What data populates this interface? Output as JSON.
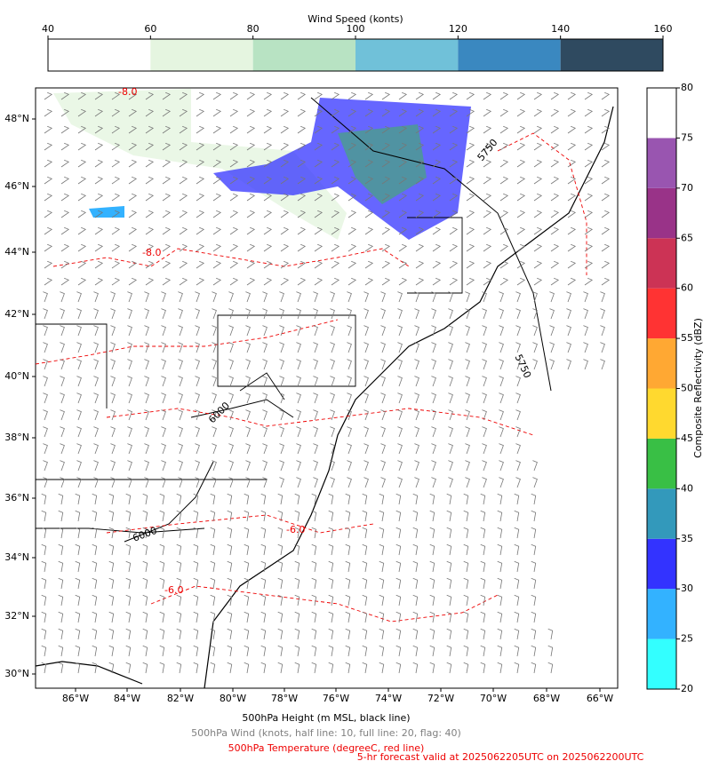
{
  "wind_colorbar": {
    "title": "Wind Speed (konts)",
    "ticks": [
      40,
      60,
      80,
      100,
      120,
      140,
      160
    ],
    "colors": [
      "#ffffff",
      "#e5f5e0",
      "#b8e3c3",
      "#70c1d9",
      "#3a88c0",
      "#2f4a60"
    ]
  },
  "reflectivity_colorbar": {
    "title": "Composite Reflectivity (dBZ)",
    "ticks": [
      20,
      25,
      30,
      35,
      40,
      45,
      50,
      55,
      60,
      65,
      70,
      75,
      80
    ],
    "colors": [
      "#33ffff",
      "#33b2ff",
      "#3333ff",
      "#3399bb",
      "#39bf45",
      "#ffd92f",
      "#ffa833",
      "#ff3333",
      "#cc3355",
      "#993388",
      "#9955b0",
      "#ffffff"
    ]
  },
  "map": {
    "lat_labels": [
      "48°N",
      "46°N",
      "44°N",
      "42°N",
      "40°N",
      "38°N",
      "36°N",
      "34°N",
      "32°N",
      "30°N"
    ],
    "lon_labels": [
      "86°W",
      "84°W",
      "82°W",
      "80°W",
      "78°W",
      "76°W",
      "74°W",
      "72°W",
      "70°W",
      "68°W",
      "66°W"
    ],
    "contour_labels": [
      "5750",
      "5750",
      "6000",
      "6000",
      "-8.0",
      "-8.0",
      "-6.0",
      "-6.0"
    ]
  },
  "captions": {
    "height": "500hPa Height (m MSL, black line)",
    "wind": "500hPa Wind (knots, half line: 10, full line: 20, flag: 40)",
    "temperature": "500hPa Temperature (degreeC, red line)",
    "forecast": "5-hr forecast valid at 2025062205UTC on 2025062200UTC"
  }
}
